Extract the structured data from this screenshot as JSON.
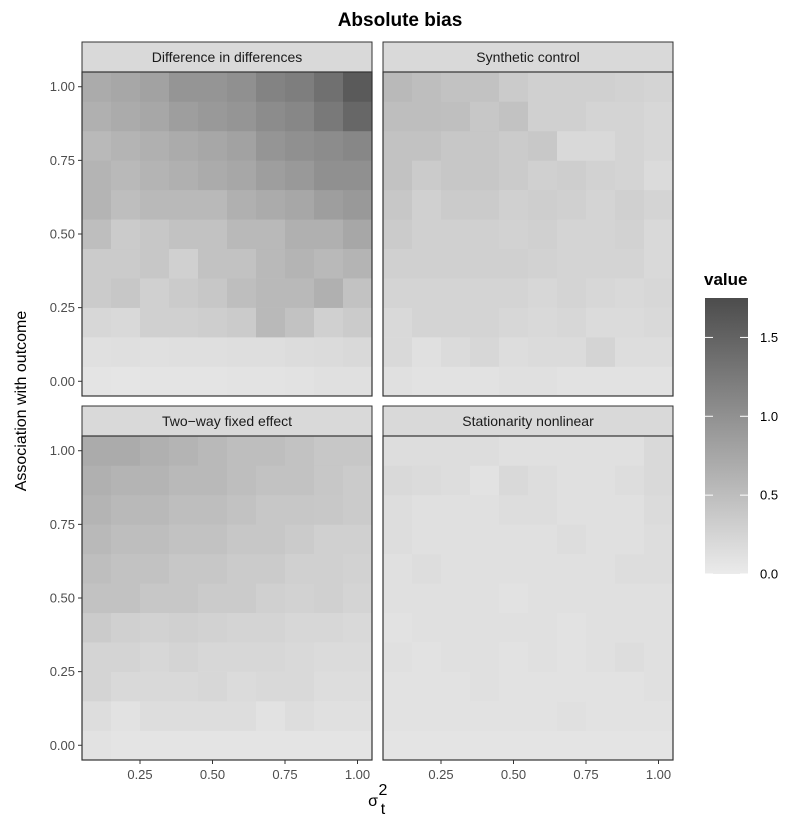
{
  "chart_data": {
    "type": "heatmap",
    "title": "Absolute bias",
    "xlabel": "σ",
    "xlabel_sup": "2",
    "xlabel_sub": "t",
    "ylabel": "Association with outcome",
    "x": [
      0.1,
      0.2,
      0.3,
      0.4,
      0.5,
      0.6,
      0.7,
      0.8,
      0.9,
      1.0
    ],
    "y": [
      0.0,
      0.1,
      0.2,
      0.3,
      0.4,
      0.5,
      0.6,
      0.7,
      0.8,
      0.9,
      1.0
    ],
    "x_ticks": [
      "0.25",
      "0.50",
      "0.75",
      "1.00"
    ],
    "x_tick_values": [
      0.25,
      0.5,
      0.75,
      1.0
    ],
    "y_ticks": [
      "0.00",
      "0.25",
      "0.50",
      "0.75",
      "1.00"
    ],
    "y_tick_values": [
      0.0,
      0.25,
      0.5,
      0.75,
      1.0
    ],
    "xlim": [
      0.05,
      1.05
    ],
    "ylim": [
      -0.05,
      1.05
    ],
    "grid": true,
    "legend": {
      "title": "value",
      "placement": "right",
      "ticks": [
        "0.0",
        "0.5",
        "1.0",
        "1.5"
      ],
      "tick_values": [
        0.0,
        0.5,
        1.0,
        1.5
      ],
      "range": [
        0.0,
        1.75
      ]
    },
    "panels": [
      {
        "name": "Difference in differences",
        "values": [
          [
            0.08,
            0.07,
            0.08,
            0.08,
            0.08,
            0.09,
            0.09,
            0.1,
            0.12,
            0.12
          ],
          [
            0.12,
            0.13,
            0.12,
            0.13,
            0.13,
            0.14,
            0.14,
            0.16,
            0.18,
            0.2
          ],
          [
            0.22,
            0.2,
            0.3,
            0.3,
            0.32,
            0.35,
            0.55,
            0.45,
            0.3,
            0.35
          ],
          [
            0.35,
            0.4,
            0.3,
            0.35,
            0.4,
            0.5,
            0.55,
            0.55,
            0.65,
            0.45
          ],
          [
            0.35,
            0.35,
            0.4,
            0.3,
            0.45,
            0.45,
            0.55,
            0.6,
            0.55,
            0.6
          ],
          [
            0.5,
            0.35,
            0.4,
            0.45,
            0.45,
            0.55,
            0.55,
            0.65,
            0.65,
            0.75
          ],
          [
            0.6,
            0.5,
            0.55,
            0.55,
            0.55,
            0.65,
            0.7,
            0.75,
            0.85,
            0.9
          ],
          [
            0.6,
            0.55,
            0.6,
            0.65,
            0.7,
            0.75,
            0.85,
            0.9,
            1.0,
            1.0
          ],
          [
            0.55,
            0.6,
            0.65,
            0.7,
            0.75,
            0.8,
            0.95,
            1.0,
            1.05,
            1.1
          ],
          [
            0.65,
            0.7,
            0.75,
            0.85,
            0.9,
            0.95,
            1.05,
            1.1,
            1.25,
            1.45
          ],
          [
            0.7,
            0.75,
            0.8,
            0.95,
            0.95,
            1.0,
            1.15,
            1.2,
            1.35,
            1.6
          ]
        ]
      },
      {
        "name": "Synthetic control",
        "values": [
          [
            0.12,
            0.1,
            0.1,
            0.1,
            0.12,
            0.12,
            0.1,
            0.1,
            0.1,
            0.1
          ],
          [
            0.2,
            0.12,
            0.18,
            0.22,
            0.15,
            0.18,
            0.18,
            0.25,
            0.15,
            0.15
          ],
          [
            0.2,
            0.25,
            0.25,
            0.25,
            0.22,
            0.2,
            0.22,
            0.18,
            0.18,
            0.2
          ],
          [
            0.25,
            0.25,
            0.25,
            0.25,
            0.25,
            0.22,
            0.25,
            0.22,
            0.2,
            0.22
          ],
          [
            0.3,
            0.3,
            0.3,
            0.3,
            0.3,
            0.28,
            0.25,
            0.25,
            0.25,
            0.2
          ],
          [
            0.35,
            0.3,
            0.3,
            0.3,
            0.28,
            0.3,
            0.25,
            0.25,
            0.28,
            0.2
          ],
          [
            0.4,
            0.3,
            0.35,
            0.35,
            0.3,
            0.32,
            0.3,
            0.25,
            0.3,
            0.25
          ],
          [
            0.45,
            0.35,
            0.4,
            0.4,
            0.35,
            0.3,
            0.32,
            0.28,
            0.25,
            0.18
          ],
          [
            0.45,
            0.45,
            0.4,
            0.4,
            0.35,
            0.38,
            0.2,
            0.2,
            0.25,
            0.22
          ],
          [
            0.5,
            0.5,
            0.48,
            0.4,
            0.45,
            0.3,
            0.3,
            0.25,
            0.25,
            0.22
          ],
          [
            0.55,
            0.5,
            0.45,
            0.45,
            0.35,
            0.3,
            0.3,
            0.3,
            0.28,
            0.25
          ]
        ]
      },
      {
        "name": "Two−way fixed effect",
        "values": [
          [
            0.1,
            0.08,
            0.08,
            0.08,
            0.08,
            0.08,
            0.08,
            0.08,
            0.08,
            0.08
          ],
          [
            0.15,
            0.1,
            0.15,
            0.15,
            0.15,
            0.15,
            0.1,
            0.15,
            0.12,
            0.12
          ],
          [
            0.25,
            0.2,
            0.2,
            0.2,
            0.22,
            0.18,
            0.2,
            0.2,
            0.15,
            0.15
          ],
          [
            0.25,
            0.25,
            0.22,
            0.25,
            0.22,
            0.22,
            0.22,
            0.2,
            0.18,
            0.18
          ],
          [
            0.35,
            0.3,
            0.28,
            0.3,
            0.28,
            0.25,
            0.25,
            0.22,
            0.22,
            0.2
          ],
          [
            0.45,
            0.45,
            0.4,
            0.4,
            0.35,
            0.35,
            0.3,
            0.28,
            0.3,
            0.25
          ],
          [
            0.5,
            0.45,
            0.45,
            0.4,
            0.4,
            0.35,
            0.35,
            0.3,
            0.3,
            0.28
          ],
          [
            0.55,
            0.5,
            0.5,
            0.45,
            0.45,
            0.4,
            0.4,
            0.35,
            0.3,
            0.3
          ],
          [
            0.6,
            0.55,
            0.55,
            0.5,
            0.5,
            0.45,
            0.4,
            0.4,
            0.38,
            0.35
          ],
          [
            0.65,
            0.6,
            0.6,
            0.55,
            0.55,
            0.5,
            0.45,
            0.45,
            0.4,
            0.35
          ],
          [
            0.7,
            0.7,
            0.65,
            0.6,
            0.55,
            0.5,
            0.5,
            0.45,
            0.4,
            0.4
          ]
        ]
      },
      {
        "name": "Stationarity nonlinear",
        "values": [
          [
            0.08,
            0.08,
            0.08,
            0.08,
            0.08,
            0.08,
            0.08,
            0.08,
            0.08,
            0.08
          ],
          [
            0.1,
            0.1,
            0.1,
            0.1,
            0.1,
            0.1,
            0.12,
            0.1,
            0.1,
            0.1
          ],
          [
            0.1,
            0.1,
            0.1,
            0.12,
            0.1,
            0.1,
            0.1,
            0.1,
            0.1,
            0.12
          ],
          [
            0.12,
            0.1,
            0.12,
            0.12,
            0.1,
            0.12,
            0.1,
            0.12,
            0.15,
            0.12
          ],
          [
            0.1,
            0.12,
            0.12,
            0.12,
            0.12,
            0.12,
            0.1,
            0.12,
            0.12,
            0.12
          ],
          [
            0.12,
            0.12,
            0.12,
            0.12,
            0.1,
            0.12,
            0.12,
            0.12,
            0.12,
            0.12
          ],
          [
            0.12,
            0.15,
            0.12,
            0.12,
            0.12,
            0.12,
            0.12,
            0.12,
            0.15,
            0.15
          ],
          [
            0.15,
            0.12,
            0.12,
            0.12,
            0.12,
            0.12,
            0.15,
            0.12,
            0.12,
            0.15
          ],
          [
            0.15,
            0.12,
            0.12,
            0.12,
            0.15,
            0.15,
            0.12,
            0.12,
            0.12,
            0.18
          ],
          [
            0.2,
            0.18,
            0.15,
            0.1,
            0.2,
            0.15,
            0.12,
            0.12,
            0.15,
            0.2
          ],
          [
            0.15,
            0.15,
            0.15,
            0.15,
            0.12,
            0.12,
            0.12,
            0.12,
            0.12,
            0.2
          ]
        ]
      }
    ]
  }
}
